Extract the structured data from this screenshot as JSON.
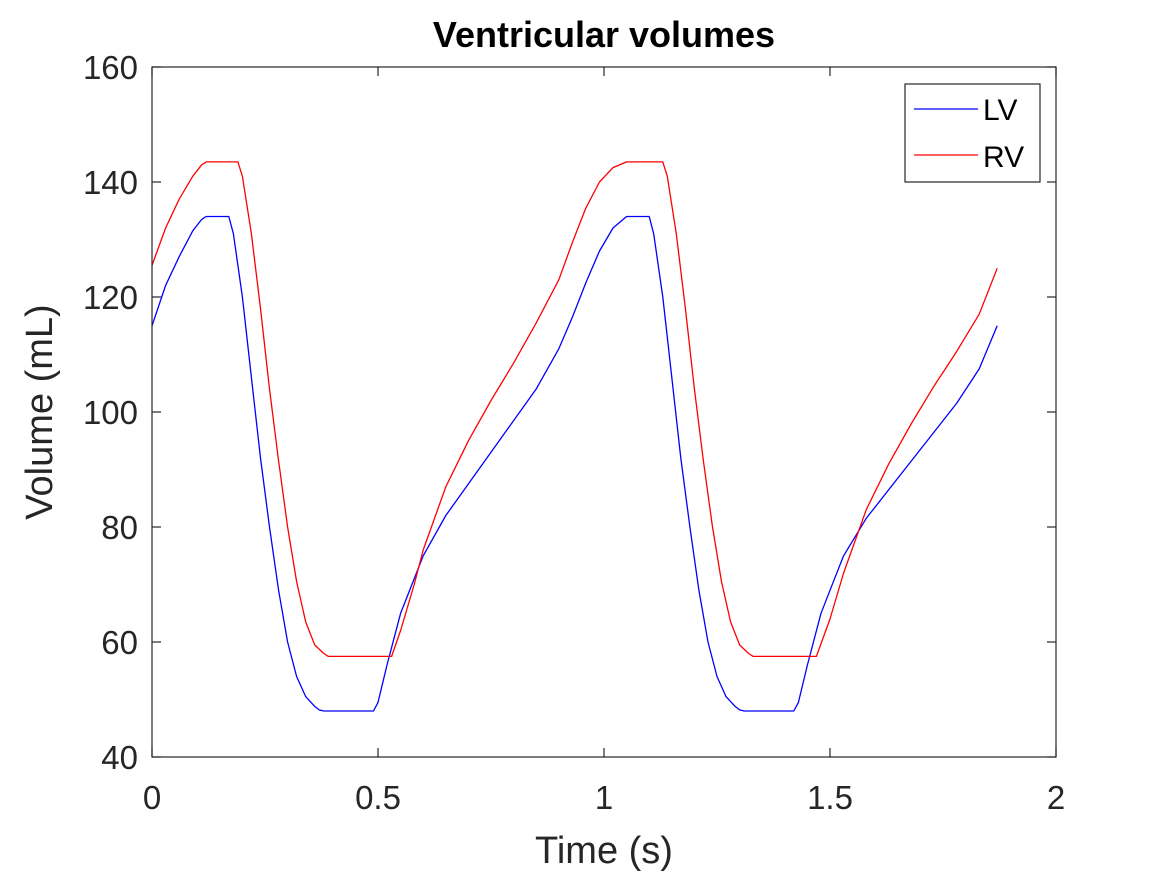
{
  "chart_data": {
    "type": "line",
    "title": "Ventricular volumes",
    "xlabel": "Time (s)",
    "ylabel": "Volume (mL)",
    "xlim": [
      0,
      2
    ],
    "ylim": [
      40,
      160
    ],
    "xticks": [
      0,
      0.5,
      1,
      1.5,
      2
    ],
    "xtick_labels": [
      "0",
      "0.5",
      "1",
      "1.5",
      "2"
    ],
    "yticks": [
      40,
      60,
      80,
      100,
      120,
      140,
      160
    ],
    "ytick_labels": [
      "40",
      "60",
      "80",
      "100",
      "120",
      "140",
      "160"
    ],
    "grid": false,
    "legend_position": "top-right",
    "series": [
      {
        "name": "LV",
        "color": "#0000ff",
        "x": [
          0,
          0.03,
          0.06,
          0.09,
          0.11,
          0.12,
          0.17,
          0.18,
          0.2,
          0.22,
          0.24,
          0.26,
          0.28,
          0.3,
          0.32,
          0.34,
          0.36,
          0.37,
          0.38,
          0.49,
          0.5,
          0.52,
          0.55,
          0.58,
          0.6,
          0.65,
          0.7,
          0.75,
          0.8,
          0.85,
          0.9,
          0.93,
          0.96,
          0.99,
          1.02,
          1.05,
          1.06,
          1.1,
          1.11,
          1.13,
          1.15,
          1.17,
          1.19,
          1.21,
          1.23,
          1.25,
          1.27,
          1.29,
          1.3,
          1.31,
          1.42,
          1.43,
          1.45,
          1.48,
          1.51,
          1.53,
          1.58,
          1.63,
          1.68,
          1.73,
          1.78,
          1.83,
          1.87
        ],
        "y": [
          115,
          122,
          127,
          131.5,
          133.5,
          134,
          134,
          131,
          120,
          106,
          92,
          80,
          69,
          60,
          54,
          50.5,
          48.8,
          48.2,
          48,
          48,
          49.5,
          56,
          65,
          71,
          75,
          82,
          87.5,
          93,
          98.5,
          104,
          111,
          116.5,
          122.5,
          128,
          132,
          134,
          134,
          134,
          131,
          120,
          106,
          92,
          80,
          69,
          60,
          54,
          50.5,
          48.8,
          48.2,
          48,
          48,
          49.5,
          56,
          65,
          71,
          75,
          81.5,
          86.5,
          91.5,
          96.5,
          101.5,
          107.5,
          115
        ]
      },
      {
        "name": "RV",
        "color": "#ff0000",
        "x": [
          0,
          0.03,
          0.06,
          0.09,
          0.11,
          0.12,
          0.19,
          0.2,
          0.22,
          0.24,
          0.26,
          0.28,
          0.3,
          0.32,
          0.34,
          0.36,
          0.38,
          0.39,
          0.53,
          0.55,
          0.58,
          0.6,
          0.65,
          0.7,
          0.75,
          0.8,
          0.85,
          0.9,
          0.93,
          0.96,
          0.99,
          1.02,
          1.05,
          1.06,
          1.13,
          1.14,
          1.16,
          1.18,
          1.2,
          1.22,
          1.24,
          1.26,
          1.28,
          1.3,
          1.32,
          1.33,
          1.47,
          1.5,
          1.53,
          1.58,
          1.63,
          1.68,
          1.73,
          1.78,
          1.83,
          1.87
        ],
        "y": [
          125.5,
          132,
          137,
          141,
          143,
          143.5,
          143.5,
          141,
          131,
          118,
          104,
          91.5,
          80,
          70.5,
          63.5,
          59.5,
          58,
          57.5,
          57.5,
          62,
          70,
          76,
          87,
          95,
          102,
          108.5,
          115.5,
          123,
          129.5,
          135.5,
          140,
          142.5,
          143.5,
          143.5,
          143.5,
          141,
          131,
          118,
          104,
          91.5,
          80,
          70.5,
          63.5,
          59.5,
          58,
          57.5,
          57.5,
          64,
          72,
          83,
          91,
          98,
          104.5,
          110.5,
          117,
          125
        ]
      }
    ]
  }
}
